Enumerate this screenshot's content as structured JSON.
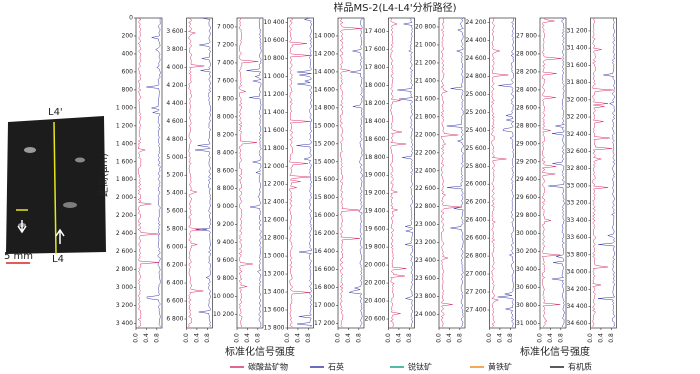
{
  "photo": {
    "top_label": "L4'",
    "bottom_label": "L4",
    "scale": "5 mm"
  },
  "chart_data": {
    "type": "profile-panels",
    "title": "样品MS-2(L4-L4'分析路径)",
    "y_label": "距离(μm)",
    "x_label": "标准化信号强度",
    "xlim": [
      0,
      1
    ],
    "xticks": [
      {
        "value": 0,
        "label": "0.0"
      },
      {
        "value": 0.4,
        "label": "0.4"
      },
      {
        "value": 0.8,
        "label": "0.8"
      }
    ],
    "legend": [
      {
        "name": "碳酸盐矿物",
        "color": "#d6336c"
      },
      {
        "name": "石英",
        "color": "#3b3ba8"
      },
      {
        "name": "锐钛矿",
        "color": "#1aa38a"
      },
      {
        "name": "黄铁矿",
        "color": "#f08c1a"
      },
      {
        "name": "有机质",
        "color": "#222222"
      }
    ],
    "panels": [
      {
        "ylim": [
          0,
          3450
        ],
        "yticks": [
          0,
          200,
          400,
          600,
          800,
          {
            "value": 1000,
            "label": "1 000"
          },
          {
            "value": 1200,
            "label": "1 200"
          },
          {
            "value": 1400,
            "label": "1 400"
          },
          {
            "value": 1600,
            "label": "1 600"
          },
          {
            "value": 1800,
            "label": "1 800"
          },
          {
            "value": 2000,
            "label": "2 000"
          },
          {
            "value": 2200,
            "label": "2 200"
          },
          {
            "value": 2400,
            "label": "2 400"
          },
          {
            "value": 2600,
            "label": "2 600"
          },
          {
            "value": 2800,
            "label": "2 800"
          },
          {
            "value": 3000,
            "label": "3 000"
          },
          {
            "value": 3200,
            "label": "3 200"
          },
          {
            "value": 3400,
            "label": "3 400"
          }
        ]
      },
      {
        "ylim": [
          3450,
          6900
        ],
        "yticks": [
          {
            "value": 3600,
            "label": "3 600"
          },
          {
            "value": 3800,
            "label": "3 800"
          },
          {
            "value": 4000,
            "label": "4 000"
          },
          {
            "value": 4200,
            "label": "4 200"
          },
          {
            "value": 4400,
            "label": "4 400"
          },
          {
            "value": 4600,
            "label": "4 600"
          },
          {
            "value": 4800,
            "label": "4 800"
          },
          {
            "value": 5000,
            "label": "5 000"
          },
          {
            "value": 5200,
            "label": "5 200"
          },
          {
            "value": 5400,
            "label": "5 400"
          },
          {
            "value": 5600,
            "label": "5 600"
          },
          {
            "value": 5800,
            "label": "5 800"
          },
          {
            "value": 6000,
            "label": "6 000"
          },
          {
            "value": 6200,
            "label": "6 200"
          },
          {
            "value": 6400,
            "label": "6 400"
          },
          {
            "value": 6600,
            "label": "6 600"
          },
          {
            "value": 6800,
            "label": "6 800"
          }
        ]
      },
      {
        "ylim": [
          6900,
          10350
        ],
        "yticks": [
          {
            "value": 7000,
            "label": "7 000"
          },
          {
            "value": 7200,
            "label": "7 200"
          },
          {
            "value": 7400,
            "label": "7 400"
          },
          {
            "value": 7600,
            "label": "7 600"
          },
          {
            "value": 7800,
            "label": "7 800"
          },
          {
            "value": 8000,
            "label": "8 000"
          },
          {
            "value": 8200,
            "label": "8 200"
          },
          {
            "value": 8400,
            "label": "8 400"
          },
          {
            "value": 8600,
            "label": "8 600"
          },
          {
            "value": 8800,
            "label": "8 800"
          },
          {
            "value": 9000,
            "label": "9 000"
          },
          {
            "value": 9200,
            "label": "9 200"
          },
          {
            "value": 9400,
            "label": "9 400"
          },
          {
            "value": 9600,
            "label": "9 600"
          },
          {
            "value": 9800,
            "label": "9 800"
          },
          {
            "value": 10000,
            "label": "10 000"
          },
          {
            "value": 10200,
            "label": "10 200"
          }
        ]
      },
      {
        "ylim": [
          10350,
          13800
        ],
        "yticks": [
          {
            "value": 10400,
            "label": "10 400"
          },
          {
            "value": 10600,
            "label": "10 600"
          },
          {
            "value": 10800,
            "label": "10 800"
          },
          {
            "value": 11000,
            "label": "11 000"
          },
          {
            "value": 11200,
            "label": "11 200"
          },
          {
            "value": 11400,
            "label": "11 400"
          },
          {
            "value": 11600,
            "label": "11 600"
          },
          {
            "value": 11800,
            "label": "11 800"
          },
          {
            "value": 12000,
            "label": "12 000"
          },
          {
            "value": 12200,
            "label": "12 200"
          },
          {
            "value": 12400,
            "label": "12 400"
          },
          {
            "value": 12600,
            "label": "12 600"
          },
          {
            "value": 12800,
            "label": "12 800"
          },
          {
            "value": 13000,
            "label": "13 000"
          },
          {
            "value": 13200,
            "label": "13 200"
          },
          {
            "value": 13400,
            "label": "13 400"
          },
          {
            "value": 13600,
            "label": "13 600"
          },
          {
            "value": 13800,
            "label": "13 800"
          }
        ]
      },
      {
        "ylim": [
          13800,
          17250
        ],
        "yticks": [
          {
            "value": 14000,
            "label": "14 000"
          },
          {
            "value": 14200,
            "label": "14 200"
          },
          {
            "value": 14400,
            "label": "14 400"
          },
          {
            "value": 14600,
            "label": "14 600"
          },
          {
            "value": 14800,
            "label": "14 800"
          },
          {
            "value": 15000,
            "label": "15 000"
          },
          {
            "value": 15200,
            "label": "15 200"
          },
          {
            "value": 15400,
            "label": "15 400"
          },
          {
            "value": 15600,
            "label": "15 600"
          },
          {
            "value": 15800,
            "label": "15 800"
          },
          {
            "value": 16000,
            "label": "16 000"
          },
          {
            "value": 16200,
            "label": "16 200"
          },
          {
            "value": 16400,
            "label": "16 400"
          },
          {
            "value": 16600,
            "label": "16 600"
          },
          {
            "value": 16800,
            "label": "16 800"
          },
          {
            "value": 17000,
            "label": "17 000"
          },
          {
            "value": 17200,
            "label": "17 200"
          }
        ]
      },
      {
        "ylim": [
          17250,
          20700
        ],
        "yticks": [
          {
            "value": 17400,
            "label": "17 400"
          },
          {
            "value": 17600,
            "label": "17 600"
          },
          {
            "value": 17800,
            "label": "17 800"
          },
          {
            "value": 18000,
            "label": "18 000"
          },
          {
            "value": 18200,
            "label": "18 200"
          },
          {
            "value": 18400,
            "label": "18 400"
          },
          {
            "value": 18600,
            "label": "18 600"
          },
          {
            "value": 18800,
            "label": "18 800"
          },
          {
            "value": 19000,
            "label": "19 000"
          },
          {
            "value": 19200,
            "label": "19 200"
          },
          {
            "value": 19400,
            "label": "19 400"
          },
          {
            "value": 19600,
            "label": "19 600"
          },
          {
            "value": 19800,
            "label": "19 800"
          },
          {
            "value": 20000,
            "label": "20 000"
          },
          {
            "value": 20200,
            "label": "20 200"
          },
          {
            "value": 20400,
            "label": "20 400"
          },
          {
            "value": 20600,
            "label": "20 600"
          }
        ]
      },
      {
        "ylim": [
          20700,
          24150
        ],
        "yticks": [
          {
            "value": 20800,
            "label": "20 800"
          },
          {
            "value": 21000,
            "label": "21 000"
          },
          {
            "value": 21200,
            "label": "21 200"
          },
          {
            "value": 21400,
            "label": "21 400"
          },
          {
            "value": 21600,
            "label": "21 600"
          },
          {
            "value": 21800,
            "label": "21 800"
          },
          {
            "value": 22000,
            "label": "22 000"
          },
          {
            "value": 22200,
            "label": "22 200"
          },
          {
            "value": 22400,
            "label": "22 400"
          },
          {
            "value": 22600,
            "label": "22 600"
          },
          {
            "value": 22800,
            "label": "22 800"
          },
          {
            "value": 23000,
            "label": "23 000"
          },
          {
            "value": 23200,
            "label": "23 200"
          },
          {
            "value": 23400,
            "label": "23 400"
          },
          {
            "value": 23600,
            "label": "23 600"
          },
          {
            "value": 23800,
            "label": "23 800"
          },
          {
            "value": 24000,
            "label": "24 000"
          }
        ]
      },
      {
        "ylim": [
          24150,
          27600
        ],
        "yticks": [
          {
            "value": 24200,
            "label": "24 200"
          },
          {
            "value": 24400,
            "label": "24 400"
          },
          {
            "value": 24600,
            "label": "24 600"
          },
          {
            "value": 24800,
            "label": "24 800"
          },
          {
            "value": 25000,
            "label": "25 000"
          },
          {
            "value": 25200,
            "label": "25 200"
          },
          {
            "value": 25400,
            "label": "25 400"
          },
          {
            "value": 25600,
            "label": "25 600"
          },
          {
            "value": 25800,
            "label": "25 800"
          },
          {
            "value": 26000,
            "label": "26 000"
          },
          {
            "value": 26200,
            "label": "26 200"
          },
          {
            "value": 26400,
            "label": "26 400"
          },
          {
            "value": 26600,
            "label": "26 600"
          },
          {
            "value": 26800,
            "label": "26 800"
          },
          {
            "value": 27000,
            "label": "27 000"
          },
          {
            "value": 27200,
            "label": "27 200"
          },
          {
            "value": 27400,
            "label": "27 400"
          }
        ]
      },
      {
        "ylim": [
          27600,
          31050
        ],
        "yticks": [
          {
            "value": 27800,
            "label": "27 800"
          },
          {
            "value": 28000,
            "label": "28 000"
          },
          {
            "value": 28200,
            "label": "28 200"
          },
          {
            "value": 28400,
            "label": "28 400"
          },
          {
            "value": 28600,
            "label": "28 600"
          },
          {
            "value": 28800,
            "label": "28 800"
          },
          {
            "value": 29000,
            "label": "29 000"
          },
          {
            "value": 29200,
            "label": "29 200"
          },
          {
            "value": 29400,
            "label": "29 400"
          },
          {
            "value": 29600,
            "label": "29 600"
          },
          {
            "value": 29800,
            "label": "29 800"
          },
          {
            "value": 30000,
            "label": "30 000"
          },
          {
            "value": 30200,
            "label": "30 200"
          },
          {
            "value": 30400,
            "label": "30 400"
          },
          {
            "value": 30600,
            "label": "30 600"
          },
          {
            "value": 30800,
            "label": "30 800"
          },
          {
            "value": 31000,
            "label": "31 000"
          }
        ]
      },
      {
        "ylim": [
          31050,
          34650
        ],
        "yticks": [
          {
            "value": 31200,
            "label": "31 200"
          },
          {
            "value": 31400,
            "label": "31 400"
          },
          {
            "value": 31600,
            "label": "31 600"
          },
          {
            "value": 31800,
            "label": "31 800"
          },
          {
            "value": 32000,
            "label": "32 000"
          },
          {
            "value": 32200,
            "label": "32 200"
          },
          {
            "value": 32400,
            "label": "32 400"
          },
          {
            "value": 32600,
            "label": "32 600"
          },
          {
            "value": 32800,
            "label": "32 800"
          },
          {
            "value": 33000,
            "label": "33 000"
          },
          {
            "value": 33200,
            "label": "33 200"
          },
          {
            "value": 33400,
            "label": "33 400"
          },
          {
            "value": 33600,
            "label": "33 600"
          },
          {
            "value": 33800,
            "label": "33 800"
          },
          {
            "value": 34000,
            "label": "34 000"
          },
          {
            "value": 34200,
            "label": "34 200"
          },
          {
            "value": 34400,
            "label": "34 400"
          },
          {
            "value": 34600,
            "label": "34 600"
          }
        ]
      }
    ]
  }
}
